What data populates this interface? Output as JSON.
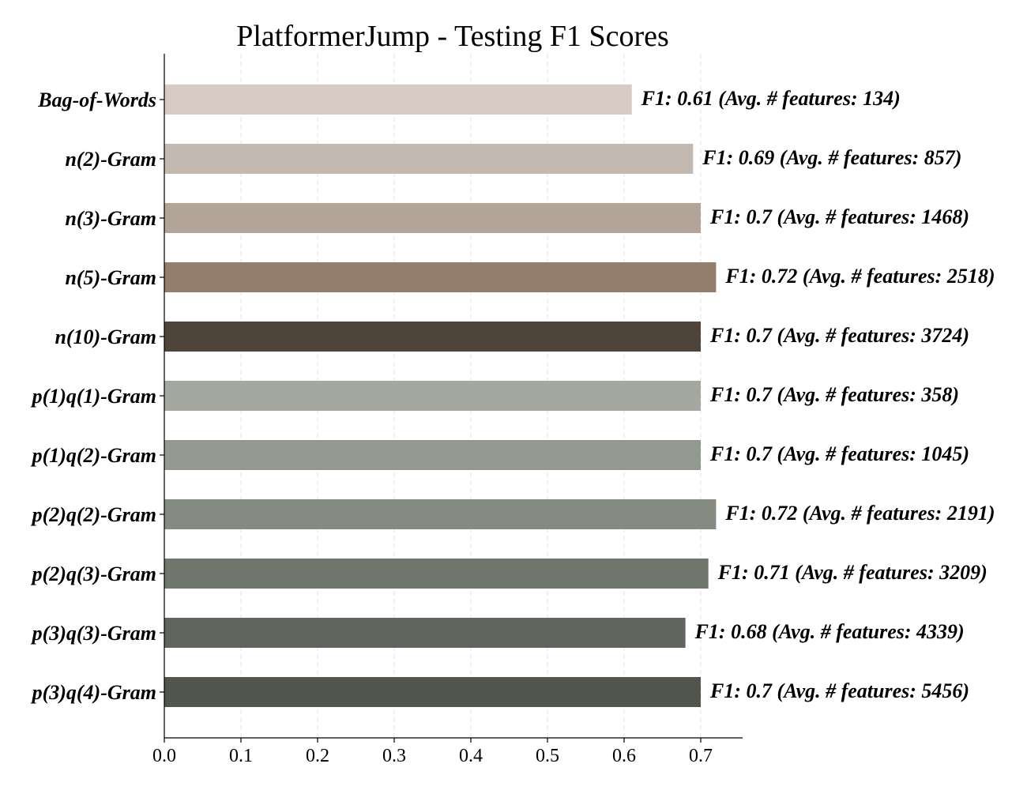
{
  "chart_data": {
    "type": "bar",
    "orientation": "horizontal",
    "title": "PlatformerJump - Testing F1 Scores",
    "xlabel": "",
    "ylabel": "",
    "xlim": [
      0,
      0.755
    ],
    "xticks": [
      "0.0",
      "0.1",
      "0.2",
      "0.3",
      "0.4",
      "0.5",
      "0.6",
      "0.7"
    ],
    "grid": "vertical dashed",
    "categories": [
      "Bag-of-Words",
      "n(2)-Gram",
      "n(3)-Gram",
      "n(5)-Gram",
      "n(10)-Gram",
      "p(1)q(1)-Gram",
      "p(1)q(2)-Gram",
      "p(2)q(2)-Gram",
      "p(2)q(3)-Gram",
      "p(3)q(3)-Gram",
      "p(3)q(4)-Gram"
    ],
    "values": [
      0.61,
      0.69,
      0.7,
      0.72,
      0.7,
      0.7,
      0.7,
      0.72,
      0.71,
      0.68,
      0.7
    ],
    "data_labels": [
      "F1: 0.61 (Avg. # features: 134)",
      "F1: 0.69 (Avg. # features: 857)",
      "F1: 0.7 (Avg. # features: 1468)",
      "F1: 0.72 (Avg. # features: 2518)",
      "F1: 0.7 (Avg. # features: 3724)",
      "F1: 0.7 (Avg. # features: 358)",
      "F1: 0.7 (Avg. # features: 1045)",
      "F1: 0.72 (Avg. # features: 2191)",
      "F1: 0.71 (Avg. # features: 3209)",
      "F1: 0.68 (Avg. # features: 4339)",
      "F1: 0.7 (Avg. # features: 5456)"
    ],
    "colors": [
      "#d8cbc4",
      "#c3b9b0",
      "#b2a598",
      "#937e6c",
      "#4f443a",
      "#a5a8a1",
      "#949990",
      "#858b81",
      "#71766d",
      "#60645c",
      "#52554e"
    ]
  }
}
